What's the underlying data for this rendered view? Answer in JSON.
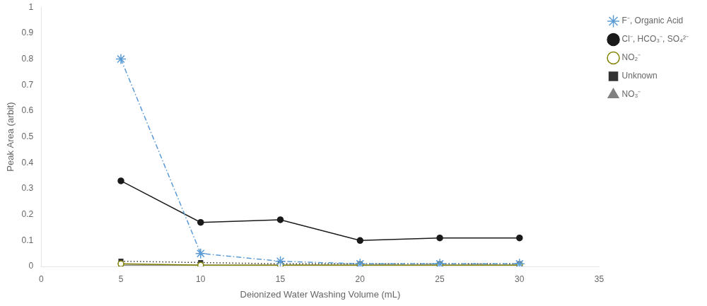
{
  "chart_data": {
    "type": "line",
    "x": [
      5,
      10,
      15,
      20,
      25,
      30
    ],
    "series": [
      {
        "name": "F⁻, Organic Acid",
        "color": "#5b9bd5",
        "line_style": "dashdot",
        "marker": "star",
        "values": [
          0.8,
          0.05,
          0.02,
          0.01,
          0.01,
          0.01
        ]
      },
      {
        "name": "Cl⁻, HCO₃⁻, SO₄²⁻",
        "color": "#1a1a1a",
        "line_style": "solid",
        "marker": "circle",
        "values": [
          0.33,
          0.17,
          0.18,
          0.1,
          0.11,
          0.11
        ]
      },
      {
        "name": "NO₂⁻",
        "color": "#808000",
        "line_style": "solid",
        "marker": "open_circle",
        "values": [
          0.01,
          0.005,
          0.005,
          0.005,
          0.005,
          0.005
        ]
      },
      {
        "name": "Unknown",
        "color": "#333333",
        "line_style": "dotted",
        "marker": "square",
        "values": [
          0.02,
          0.015,
          0.01,
          0.01,
          0.01,
          0.01
        ]
      },
      {
        "name": "NO₃⁻",
        "color": "#808080",
        "line_style": "solid",
        "marker": "triangle",
        "values": [
          0.005,
          0.005,
          0.005,
          0.005,
          0.005,
          0.005
        ]
      }
    ],
    "xlabel": "Deionized Water Washing Volume (mL)",
    "ylabel": "Peak Area (arbit)",
    "xlim": [
      0,
      35
    ],
    "ylim": [
      0,
      1.0
    ],
    "xticks": [
      0,
      5,
      10,
      15,
      20,
      25,
      30,
      35
    ],
    "yticks": [
      0,
      0.1,
      0.2,
      0.3,
      0.4,
      0.5,
      0.6,
      0.7,
      0.8,
      0.9,
      1
    ],
    "grid": false,
    "legend": "upper right"
  }
}
